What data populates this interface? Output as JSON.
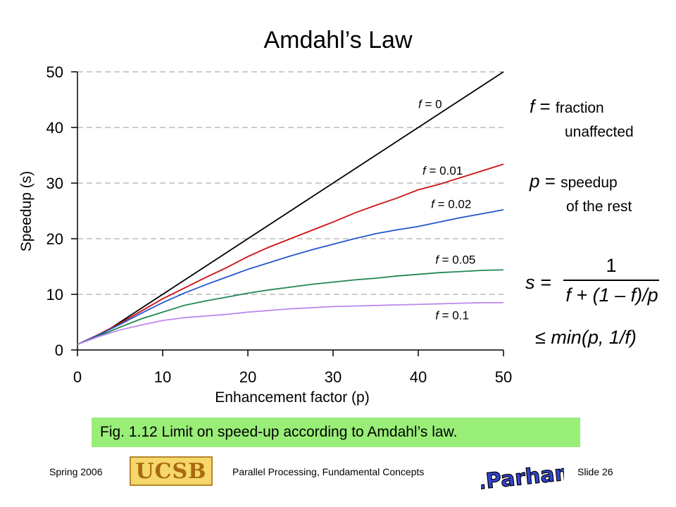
{
  "slide": {
    "title": "Amdahl’s Law",
    "caption": "Fig. 1.12   Limit on speed-up according to Amdahl’s law.",
    "footer_left": "Spring 2006",
    "footer_center": "Parallel Processing, Fundamental Concepts",
    "footer_right": "Slide 26",
    "logo_text": "UCSB",
    "signature_text": "B.Parhami"
  },
  "legend_notes": {
    "f_symbol": "f",
    "f_eq": " = ",
    "f_desc1": "fraction",
    "f_desc2": "unaffected",
    "p_symbol": "p",
    "p_eq": " = ",
    "p_desc1": "speedup",
    "p_desc2": "of the rest"
  },
  "formula": {
    "lhs": "s =",
    "numerator": "1",
    "denominator": "f + (1 – f)/p",
    "bound": "≤ min(p, 1/f)"
  },
  "chart_data": {
    "type": "line",
    "xlabel": "Enhancement factor (p)",
    "ylabel": "Speedup (s)",
    "xlim": [
      0,
      50
    ],
    "ylim": [
      0,
      50
    ],
    "xticks": [
      0,
      10,
      20,
      30,
      40,
      50
    ],
    "yticks": [
      0,
      10,
      20,
      30,
      40,
      50
    ],
    "grid": "horizontal dashed",
    "x": [
      0,
      2.5,
      5,
      7.5,
      10,
      12.5,
      15,
      17.5,
      20,
      22.5,
      25,
      27.5,
      30,
      32.5,
      35,
      37.5,
      40,
      42.5,
      45,
      47.5,
      50
    ],
    "series": [
      {
        "name": "f = 0",
        "color": "#000000",
        "values": [
          1,
          2.5,
          5,
          7.5,
          10,
          12.5,
          15,
          17.5,
          20,
          22.5,
          25,
          27.5,
          30,
          32.5,
          35,
          37.5,
          40,
          42.5,
          45,
          47.5,
          50
        ]
      },
      {
        "name": "f = 0.01",
        "color": "#cc1111",
        "values": [
          1,
          2.8,
          4.8,
          7.0,
          9.2,
          11.1,
          13.0,
          14.8,
          16.8,
          18.5,
          20.0,
          21.5,
          23.0,
          24.6,
          26.0,
          27.3,
          28.8,
          29.8,
          31.0,
          32.2,
          33.4
        ]
      },
      {
        "name": "f = 0.02",
        "color": "#2255cc",
        "values": [
          1,
          2.7,
          4.6,
          6.6,
          8.5,
          10.2,
          11.7,
          13.1,
          14.5,
          15.7,
          16.9,
          18.0,
          19.0,
          20.0,
          20.9,
          21.6,
          22.2,
          23.0,
          23.8,
          24.5,
          25.2
        ]
      },
      {
        "name": "f = 0.05",
        "color": "#228855",
        "values": [
          1,
          2.5,
          4.1,
          5.6,
          6.8,
          8.0,
          8.8,
          9.5,
          10.2,
          10.8,
          11.3,
          11.8,
          12.2,
          12.6,
          12.9,
          13.3,
          13.6,
          13.9,
          14.1,
          14.3,
          14.4
        ]
      },
      {
        "name": "f = 0.1",
        "color": "#bb88ee",
        "values": [
          1,
          2.4,
          3.6,
          4.5,
          5.3,
          5.8,
          6.1,
          6.4,
          6.8,
          7.1,
          7.4,
          7.6,
          7.8,
          7.9,
          8.0,
          8.1,
          8.2,
          8.3,
          8.4,
          8.5,
          8.5
        ]
      }
    ],
    "series_labels": [
      {
        "symbol": "f",
        "value": " = 0",
        "x": 40,
        "y": 43.5
      },
      {
        "symbol": "f",
        "value": " = 0.01",
        "x": 40.5,
        "y": 31.5
      },
      {
        "symbol": "f",
        "value": " = 0.02",
        "x": 41.5,
        "y": 25.5
      },
      {
        "symbol": "f",
        "value": " = 0.05",
        "x": 42,
        "y": 15.5
      },
      {
        "symbol": "f",
        "value": " = 0.1",
        "x": 42,
        "y": 5.5
      }
    ]
  }
}
